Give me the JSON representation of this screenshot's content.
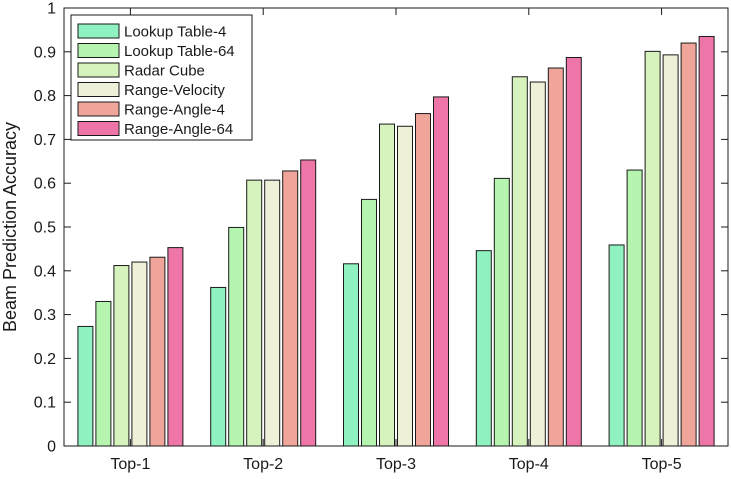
{
  "chart_data": {
    "type": "bar",
    "title": "",
    "xlabel": "",
    "ylabel": "Beam Prediction Accuracy",
    "ylim": [
      0,
      1
    ],
    "yticks": [
      "0",
      "0.1",
      "0.2",
      "0.3",
      "0.4",
      "0.5",
      "0.6",
      "0.7",
      "0.8",
      "0.9",
      "1"
    ],
    "categories": [
      "Top-1",
      "Top-2",
      "Top-3",
      "Top-4",
      "Top-5"
    ],
    "grid": false,
    "legend_position": "top-left",
    "series": [
      {
        "name": "Lookup Table-4",
        "color": "#8ff2c0",
        "values": [
          0.273,
          0.362,
          0.416,
          0.446,
          0.459
        ]
      },
      {
        "name": "Lookup Table-64",
        "color": "#b6f5b0",
        "values": [
          0.33,
          0.499,
          0.563,
          0.611,
          0.63
        ]
      },
      {
        "name": "Radar Cube",
        "color": "#d6f3bd",
        "values": [
          0.412,
          0.607,
          0.735,
          0.843,
          0.901
        ]
      },
      {
        "name": "Range-Velocity",
        "color": "#eef0d8",
        "values": [
          0.42,
          0.607,
          0.73,
          0.831,
          0.893
        ]
      },
      {
        "name": "Range-Angle-4",
        "color": "#f0a59a",
        "values": [
          0.431,
          0.628,
          0.759,
          0.863,
          0.92
        ]
      },
      {
        "name": "Range-Angle-64",
        "color": "#ee75a8",
        "values": [
          0.453,
          0.653,
          0.797,
          0.887,
          0.935
        ]
      }
    ]
  }
}
